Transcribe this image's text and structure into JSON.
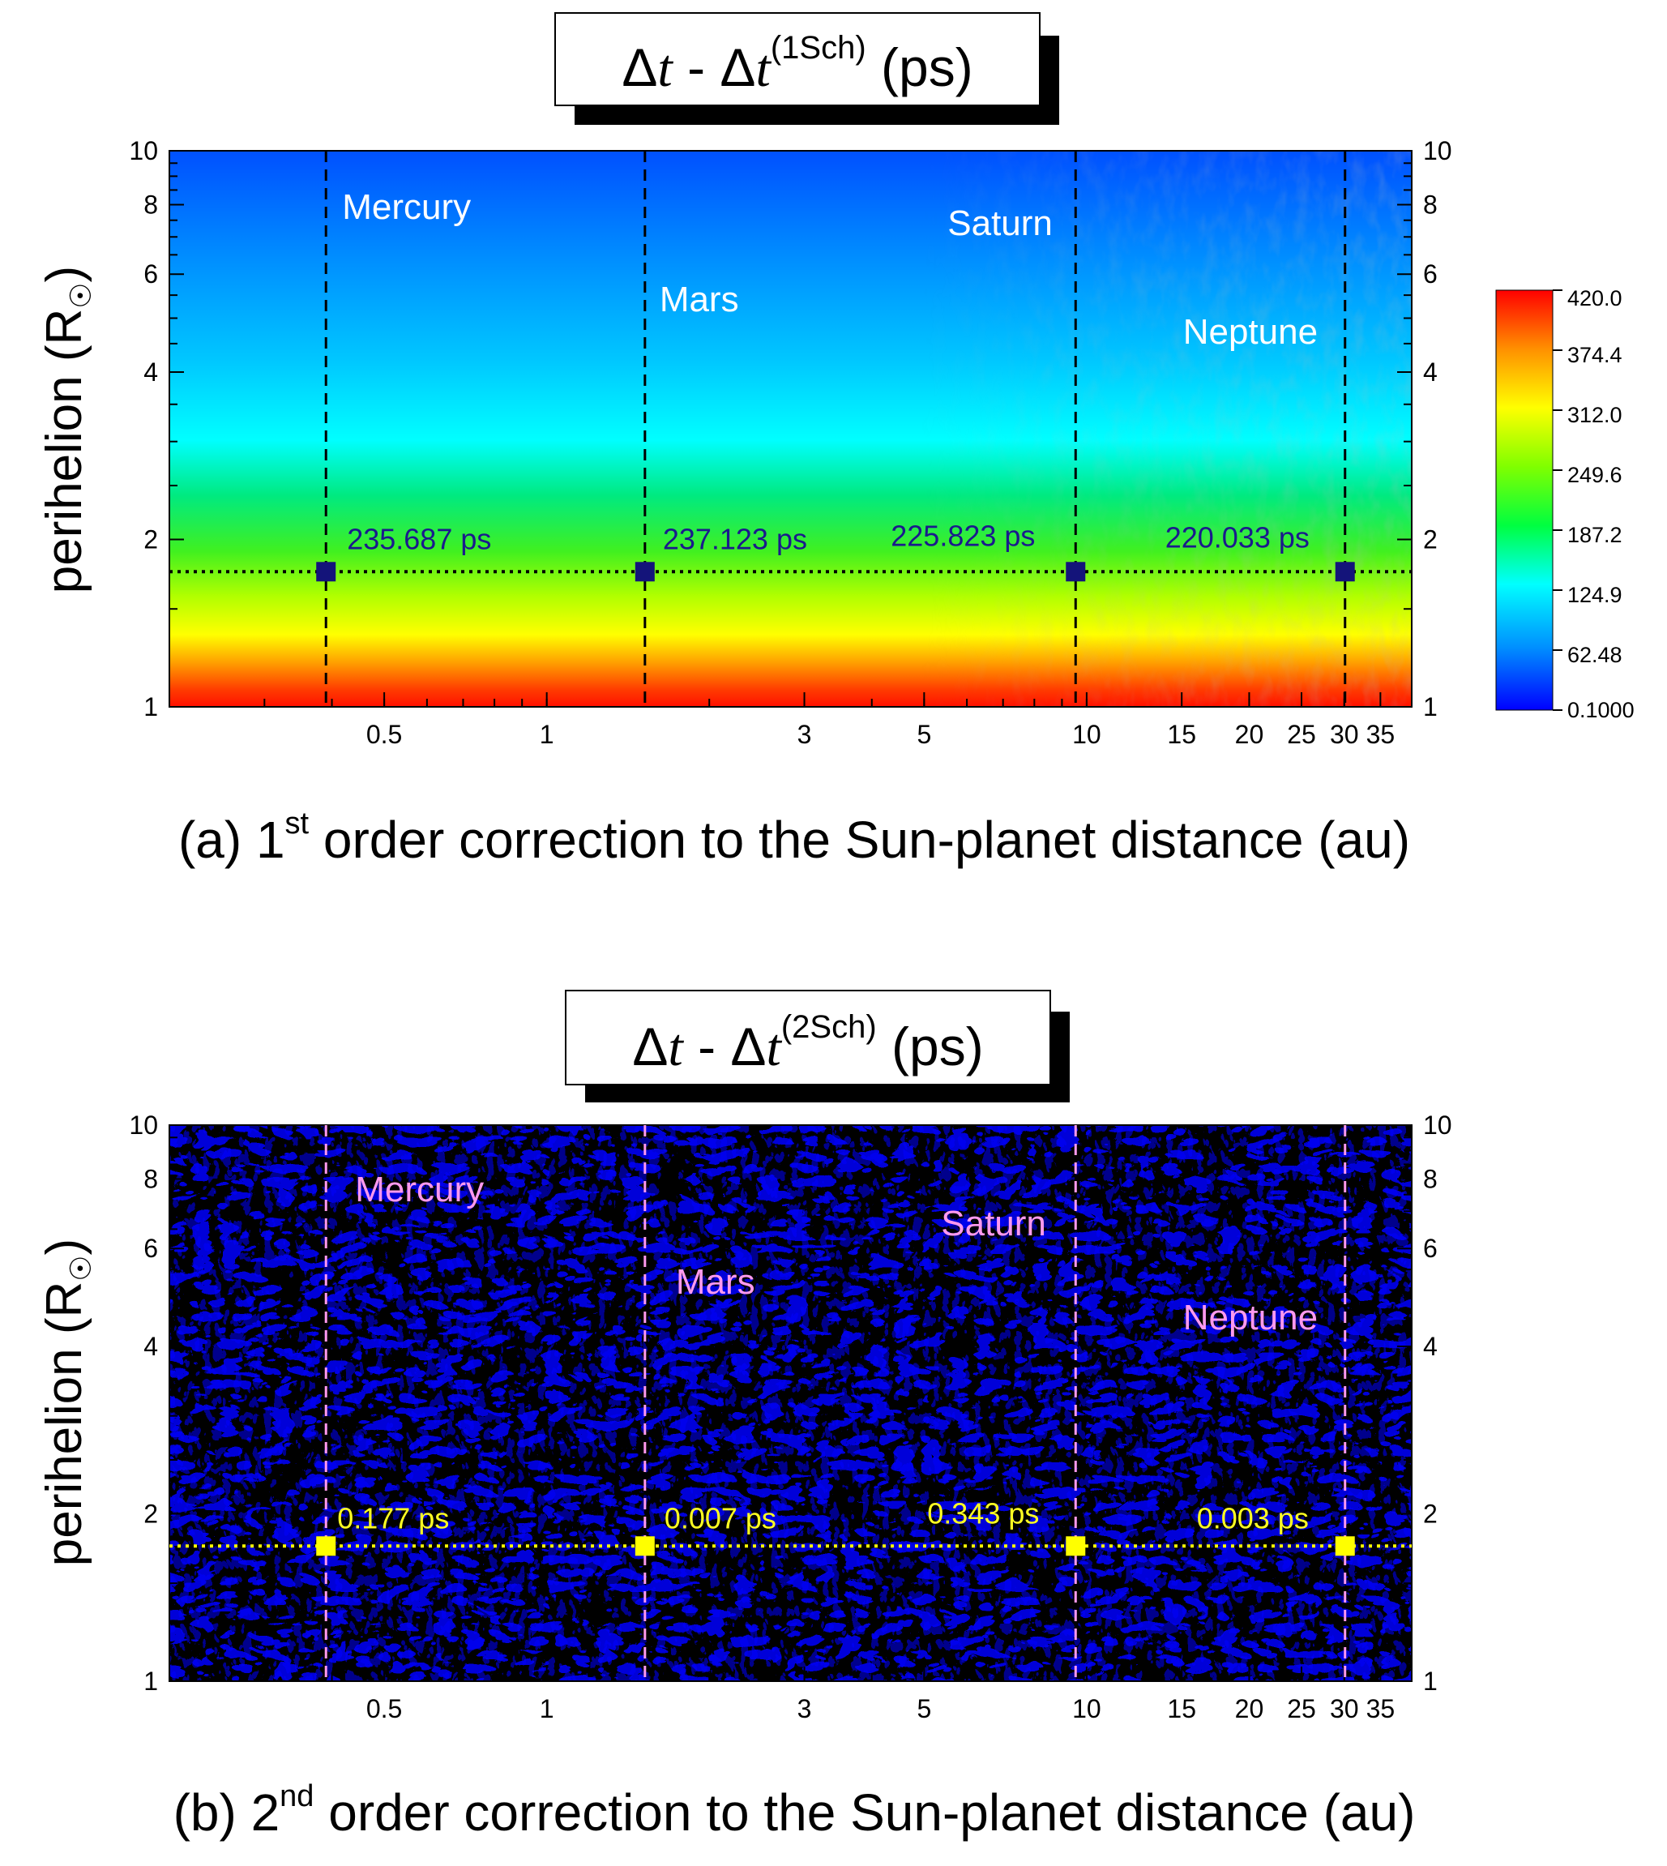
{
  "chart_data": [
    {
      "type": "heatmap",
      "panel": "a",
      "title_parts": {
        "delta1": "Δ",
        "t1": "t",
        "sep": " - ",
        "delta2": "Δ",
        "t2": "t",
        "sup": "(1Sch)",
        "unit": " (ps)"
      },
      "xlabel_parts": {
        "pre": "(a) 1",
        "sup": "st",
        "post": " order correction to the Sun-planet distance (au)"
      },
      "ylabel": "perihelion (R",
      "ylabel_close": ")",
      "x_scale": "log",
      "xlim": [
        0.2,
        40
      ],
      "x_ticks": [
        0.5,
        1,
        3,
        5,
        10,
        15,
        20,
        25,
        30,
        35
      ],
      "x_tick_labels": [
        "0.5",
        "1",
        "3",
        "5",
        "10",
        "15",
        "20",
        "25",
        "30",
        "35"
      ],
      "y_scale": "log",
      "ylim": [
        1,
        10
      ],
      "y_ticks": [
        1,
        2,
        4,
        6,
        8,
        10
      ],
      "y_tick_labels": [
        "1",
        "2",
        "4",
        "6",
        "8",
        "10"
      ],
      "colorbar": {
        "ticks": [
          0.1,
          62.48,
          124.9,
          187.2,
          249.6,
          312.0,
          374.4,
          420.0
        ],
        "tick_labels": [
          "0.1000",
          "62.48",
          "124.9",
          "187.2",
          "249.6",
          "312.0",
          "374.4",
          "420.0"
        ],
        "colors": [
          "#0000ff",
          "#00a0ff",
          "#00ffff",
          "#00ff60",
          "#60ff00",
          "#ffff00",
          "#ffa000",
          "#ff0000"
        ]
      },
      "reference_perihelion": 1.75,
      "planets": [
        {
          "name": "Mercury",
          "distance": 0.39,
          "value_label": "235.687 ps",
          "value": 235.687
        },
        {
          "name": "Mars",
          "distance": 1.52,
          "value_label": "237.123 ps",
          "value": 237.123
        },
        {
          "name": "Saturn",
          "distance": 9.54,
          "value_label": "225.823 ps",
          "value": 225.823
        },
        {
          "name": "Neptune",
          "distance": 30.1,
          "value_label": "220.033 ps",
          "value": 220.033
        }
      ],
      "colors": {
        "planet_label": "#ffffff",
        "value_label": "#1a1a8c",
        "marker": "#14147a",
        "guide_line": "#000000"
      }
    },
    {
      "type": "heatmap",
      "panel": "b",
      "title_parts": {
        "delta1": "Δ",
        "t1": "t",
        "sep": " - ",
        "delta2": "Δ",
        "t2": "t",
        "sup": "(2Sch)",
        "unit": " (ps)"
      },
      "xlabel_parts": {
        "pre": "(b) 2",
        "sup": "nd",
        "post": " order correction to the Sun-planet distance (au)"
      },
      "ylabel": "perihelion (R",
      "ylabel_close": ")",
      "x_scale": "log",
      "xlim": [
        0.2,
        40
      ],
      "x_ticks": [
        0.5,
        1,
        3,
        5,
        10,
        15,
        20,
        25,
        30,
        35
      ],
      "x_tick_labels": [
        "0.5",
        "1",
        "3",
        "5",
        "10",
        "15",
        "20",
        "25",
        "30",
        "35"
      ],
      "y_scale": "log",
      "ylim": [
        1,
        10
      ],
      "y_ticks": [
        1,
        2,
        4,
        6,
        8,
        10
      ],
      "y_tick_labels": [
        "1",
        "2",
        "4",
        "6",
        "8",
        "10"
      ],
      "reference_perihelion": 1.75,
      "planets": [
        {
          "name": "Mercury",
          "distance": 0.39,
          "value_label": "0.177 ps",
          "value": 0.177
        },
        {
          "name": "Mars",
          "distance": 1.52,
          "value_label": "0.007 ps",
          "value": 0.007
        },
        {
          "name": "Saturn",
          "distance": 9.54,
          "value_label": "0.343 ps",
          "value": 0.343
        },
        {
          "name": "Neptune",
          "distance": 30.1,
          "value_label": "0.003 ps",
          "value": 0.003
        }
      ],
      "colors": {
        "planet_label": "#ff99ee",
        "value_label": "#ffff22",
        "marker": "#ffff00",
        "guide_line": "#ff99ee",
        "field_low": "#000000",
        "field_high": "#0000ff"
      }
    }
  ]
}
